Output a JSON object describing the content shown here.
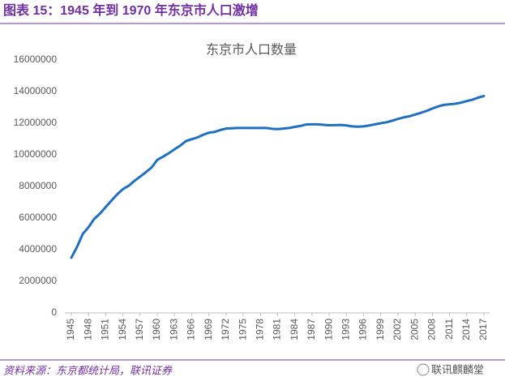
{
  "header": {
    "title": "图表 15：1945 年到 1970 年东京市人口激增"
  },
  "footer": {
    "source": "资料来源：东京都统计局，联讯证券",
    "watermark": "联讯麒麟堂"
  },
  "chart_data": {
    "type": "line",
    "title": "东京市人口数量",
    "x": [
      1945,
      1946,
      1947,
      1948,
      1949,
      1950,
      1951,
      1952,
      1953,
      1954,
      1955,
      1956,
      1957,
      1958,
      1959,
      1960,
      1961,
      1962,
      1963,
      1964,
      1965,
      1966,
      1967,
      1968,
      1969,
      1970,
      1971,
      1972,
      1973,
      1974,
      1975,
      1976,
      1977,
      1978,
      1979,
      1980,
      1981,
      1982,
      1983,
      1984,
      1985,
      1986,
      1987,
      1988,
      1989,
      1990,
      1991,
      1992,
      1993,
      1994,
      1995,
      1996,
      1997,
      1998,
      1999,
      2000,
      2001,
      2002,
      2003,
      2004,
      2005,
      2006,
      2007,
      2008,
      2009,
      2010,
      2011,
      2012,
      2013,
      2014,
      2015,
      2016,
      2017
    ],
    "series": [
      {
        "color": "#1f70c1",
        "values": [
          3490000,
          4180000,
          5000000,
          5420000,
          5950000,
          6280000,
          6700000,
          7100000,
          7500000,
          7830000,
          8040000,
          8350000,
          8620000,
          8900000,
          9200000,
          9680000,
          9880000,
          10100000,
          10350000,
          10580000,
          10870000,
          10990000,
          11100000,
          11270000,
          11400000,
          11450000,
          11570000,
          11660000,
          11680000,
          11700000,
          11700000,
          11700000,
          11700000,
          11700000,
          11700000,
          11650000,
          11630000,
          11660000,
          11700000,
          11770000,
          11830000,
          11920000,
          11930000,
          11930000,
          11900000,
          11870000,
          11880000,
          11890000,
          11860000,
          11800000,
          11780000,
          11800000,
          11860000,
          11930000,
          12000000,
          12060000,
          12160000,
          12270000,
          12370000,
          12440000,
          12550000,
          12660000,
          12780000,
          12930000,
          13060000,
          13160000,
          13200000,
          13230000,
          13300000,
          13400000,
          13490000,
          13620000,
          13720000
        ]
      }
    ],
    "xlim": [
      1945,
      2017
    ],
    "xticks": [
      1945,
      1948,
      1951,
      1954,
      1957,
      1960,
      1963,
      1966,
      1969,
      1972,
      1975,
      1978,
      1981,
      1984,
      1987,
      1990,
      1993,
      1996,
      1999,
      2002,
      2005,
      2008,
      2011,
      2014,
      2017
    ],
    "ylim": [
      0,
      16000000
    ],
    "yticks": [
      0,
      2000000,
      4000000,
      6000000,
      8000000,
      10000000,
      12000000,
      14000000,
      16000000
    ],
    "grid": false
  }
}
